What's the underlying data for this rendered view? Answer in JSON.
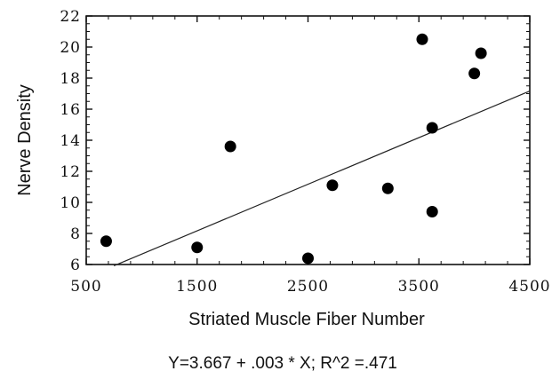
{
  "chart_data": {
    "type": "scatter",
    "xlabel": "Striated Muscle Fiber Number",
    "ylabel": "Nerve Density",
    "xlim": [
      500,
      4500
    ],
    "ylim": [
      6,
      22
    ],
    "x_ticks": [
      500,
      1500,
      2500,
      3500,
      4500
    ],
    "y_ticks": [
      6,
      8,
      10,
      12,
      14,
      16,
      18,
      20,
      22
    ],
    "x_tick_labels": [
      "500",
      "1500",
      "2500",
      "3500",
      "4500"
    ],
    "y_tick_labels": [
      "6",
      "8",
      "10",
      "12",
      "14",
      "16",
      "18",
      "20",
      "22"
    ],
    "series": [
      {
        "points": [
          {
            "x": 680,
            "y": 7.5
          },
          {
            "x": 1500,
            "y": 7.1
          },
          {
            "x": 1800,
            "y": 13.6
          },
          {
            "x": 2500,
            "y": 6.4
          },
          {
            "x": 2720,
            "y": 11.1
          },
          {
            "x": 3220,
            "y": 10.9
          },
          {
            "x": 3530,
            "y": 20.5
          },
          {
            "x": 3620,
            "y": 14.8
          },
          {
            "x": 3620,
            "y": 9.4
          },
          {
            "x": 4000,
            "y": 18.3
          },
          {
            "x": 4060,
            "y": 19.6
          }
        ]
      }
    ],
    "regression": {
      "intercept": 3.667,
      "slope": 0.003,
      "x_start": 750,
      "x_end": 4500
    },
    "caption": "Y=3.667 + .003 * X; R^2 =.471",
    "grid": false,
    "marker_color": "#000000"
  }
}
